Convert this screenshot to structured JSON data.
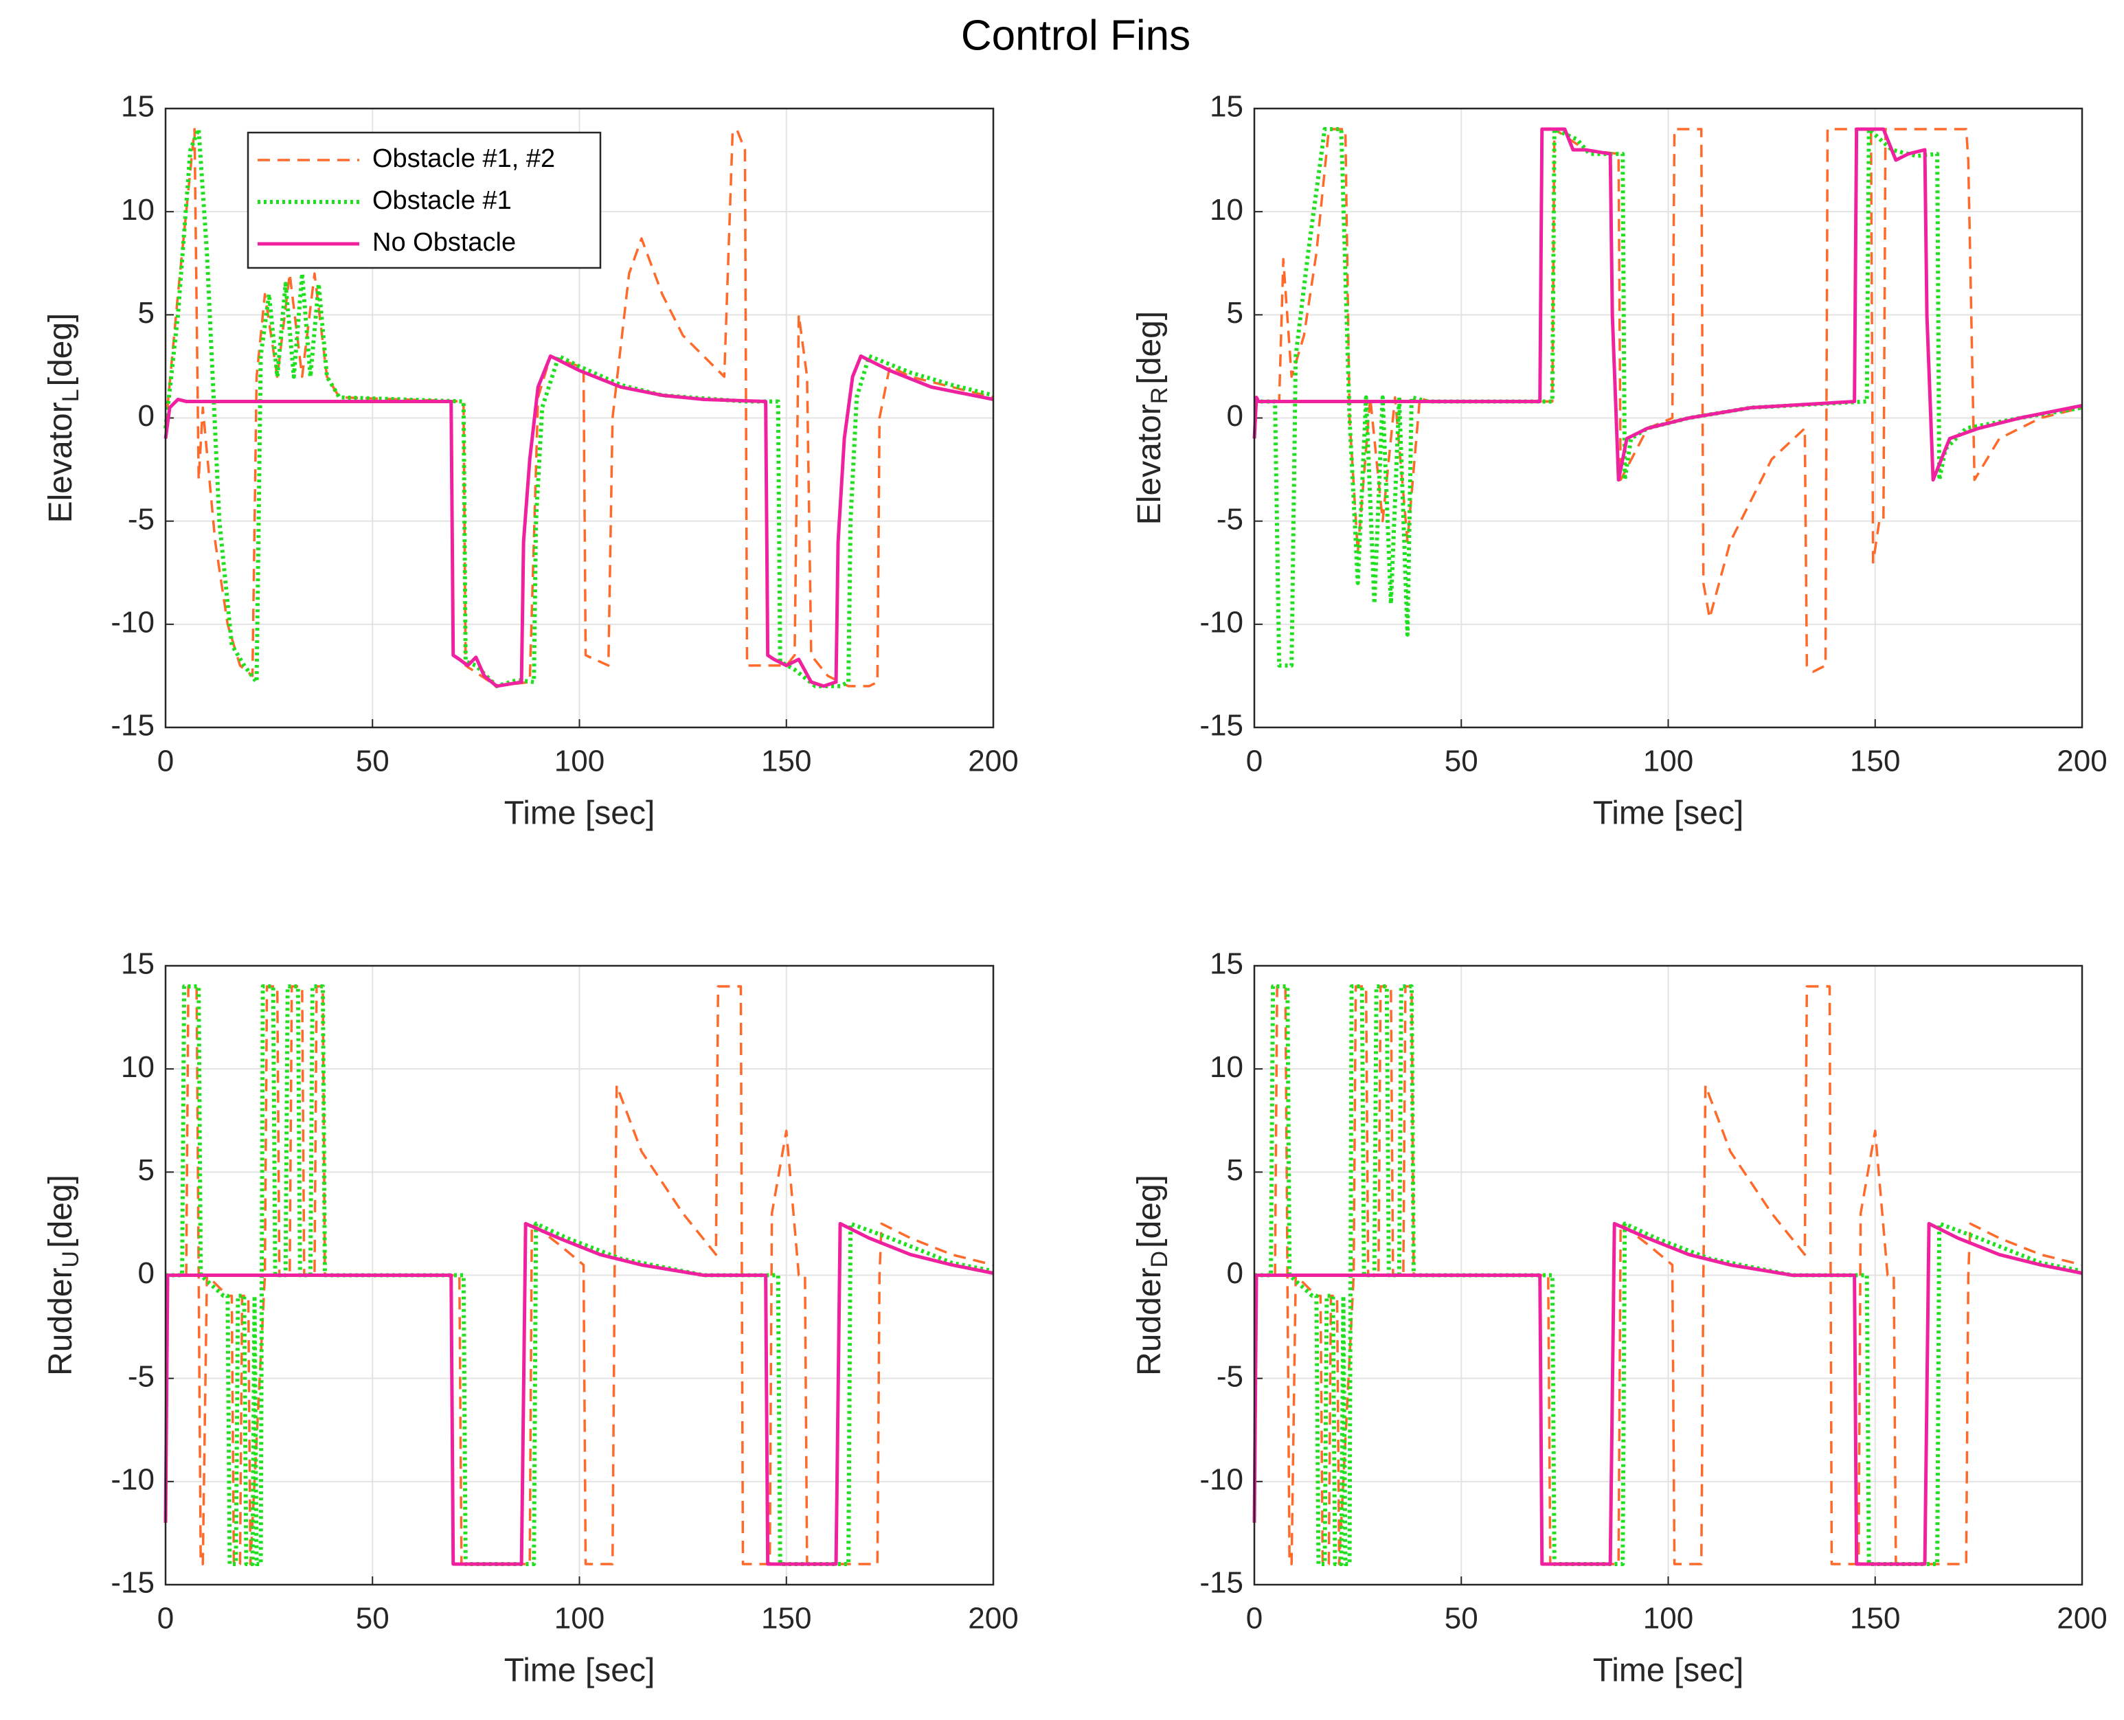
{
  "title": "Control Fins",
  "chart_data": [
    {
      "type": "line",
      "ylabel": "Elevator",
      "ylabel_sub": "L",
      "ylabel_unit": "[deg]",
      "xlabel": "Time [sec]",
      "xlim": [
        0,
        200
      ],
      "ylim": [
        -15,
        15
      ],
      "xticks": [
        0,
        50,
        100,
        150,
        200
      ],
      "yticks": [
        -15,
        -10,
        -5,
        0,
        5,
        10,
        15
      ],
      "grid": true,
      "legend": "upper left",
      "series": [
        {
          "name": "Obstacle #1, #2",
          "color": "#ff6a2b",
          "style": "dashed",
          "x": [
            0,
            3,
            7,
            8,
            9,
            12,
            15,
            18,
            21,
            22,
            24,
            27,
            30,
            33,
            36,
            39,
            42,
            72,
            72.5,
            80,
            88,
            90,
            93,
            100,
            101,
            101.5,
            107,
            108,
            112,
            115,
            120,
            125,
            130,
            135,
            137,
            138,
            140,
            140.5,
            150,
            152,
            153,
            155,
            156,
            160,
            165,
            170,
            172,
            172.5,
            175,
            180,
            190,
            200
          ],
          "values": [
            -0.5,
            6,
            14,
            -3,
            0.5,
            -6,
            -10,
            -12,
            -12.5,
            2,
            6,
            2,
            7,
            2,
            7,
            2,
            1,
            0.8,
            -12,
            -13,
            -12.8,
            1,
            3,
            2.5,
            2.3,
            -11.5,
            -12,
            0,
            7,
            8.7,
            6,
            4,
            3,
            2,
            13.8,
            14,
            13,
            -12,
            -12,
            -11.5,
            5,
            2,
            -11.5,
            -12.5,
            -13,
            -13,
            -12.8,
            0,
            2.5,
            2,
            1.5,
            1
          ]
        },
        {
          "name": "Obstacle #1",
          "color": "#1fe01f",
          "style": "dotted",
          "x": [
            0,
            3,
            6,
            8,
            10,
            13,
            16,
            19,
            22,
            23,
            25,
            27,
            29,
            31,
            33,
            35,
            37,
            39,
            42,
            72,
            72.5,
            75,
            80,
            85,
            89,
            89.5,
            91,
            95,
            100,
            110,
            120,
            140,
            148,
            148.5,
            152,
            157,
            163,
            165,
            165.5,
            167,
            170,
            180,
            190,
            200
          ],
          "values": [
            -0.5,
            5,
            13,
            14,
            8,
            -5,
            -11,
            -12,
            -12.8,
            3,
            6,
            2,
            6.5,
            2,
            7,
            2,
            6.5,
            2,
            1,
            0.8,
            -11.8,
            -12,
            -13,
            -12.7,
            -12.8,
            -5,
            0.5,
            3,
            2.5,
            1.6,
            1.1,
            0.8,
            0.8,
            -11.8,
            -12.2,
            -13,
            -13,
            -12.8,
            -5,
            1,
            3,
            2.2,
            1.6,
            1.1
          ]
        },
        {
          "name": "No Obstacle",
          "color": "#f0219f",
          "style": "solid",
          "x": [
            0,
            1,
            3,
            5,
            69,
            69.5,
            71,
            73,
            75,
            77,
            80,
            83,
            86,
            86.5,
            88,
            90,
            93,
            100,
            110,
            120,
            130,
            145,
            145.5,
            147,
            150,
            153,
            156,
            159,
            162,
            162.5,
            164,
            166,
            168,
            175,
            185,
            200
          ],
          "values": [
            -1,
            0.5,
            0.9,
            0.8,
            0.8,
            -11.5,
            -11.7,
            -12,
            -11.6,
            -12.5,
            -13,
            -12.9,
            -12.8,
            -6,
            -2,
            1.5,
            3,
            2.3,
            1.5,
            1.1,
            0.9,
            0.8,
            -11.5,
            -11.7,
            -12,
            -11.7,
            -12.8,
            -13,
            -12.8,
            -6,
            -1,
            2,
            3,
            2.3,
            1.5,
            0.9
          ]
        }
      ]
    },
    {
      "type": "line",
      "ylabel": "Elevator",
      "ylabel_sub": "R",
      "ylabel_unit": "[deg]",
      "xlabel": "Time [sec]",
      "xlim": [
        0,
        200
      ],
      "ylim": [
        -15,
        15
      ],
      "xticks": [
        0,
        50,
        100,
        150,
        200
      ],
      "yticks": [
        -15,
        -10,
        -5,
        0,
        5,
        10,
        15
      ],
      "grid": true,
      "series": [
        {
          "name": "Obstacle #1, #2",
          "color": "#ff6a2b",
          "style": "dashed",
          "x": [
            0,
            6,
            7,
            9,
            12,
            15,
            18,
            20,
            22,
            23,
            25,
            28,
            31,
            34,
            37,
            40,
            42,
            72,
            72.5,
            80,
            88,
            88.5,
            95,
            101,
            101.5,
            108,
            108.5,
            110,
            115,
            120,
            125,
            133,
            133.5,
            135,
            138,
            138.5,
            149,
            149.5,
            151,
            152,
            152.5,
            172,
            172.5,
            174,
            180,
            190,
            200
          ],
          "values": [
            0.8,
            0.8,
            7.7,
            2,
            4,
            8,
            14,
            14,
            14,
            0,
            -6.5,
            1,
            -5,
            1,
            -6,
            1,
            0.8,
            0.8,
            14,
            13,
            12.8,
            -3,
            -0.5,
            0,
            14,
            14,
            -8,
            -9.7,
            -6,
            -4,
            -2,
            -0.5,
            -12,
            -12.3,
            -12,
            14,
            14,
            -7,
            -5,
            -5,
            14,
            14,
            12.5,
            -3,
            -1,
            0,
            0.5
          ]
        },
        {
          "name": "Obstacle #1",
          "color": "#1fe01f",
          "style": "dotted",
          "x": [
            0,
            5,
            6,
            9,
            10,
            13,
            17,
            21,
            23,
            25,
            27,
            29,
            31,
            33,
            35,
            37,
            38,
            42,
            72,
            72.5,
            78,
            81,
            89,
            89.5,
            91,
            95,
            105,
            120,
            148,
            148.5,
            154,
            160,
            165,
            165.5,
            167,
            172,
            185,
            200
          ],
          "values": [
            0.8,
            0.8,
            -12,
            -12,
            3,
            8,
            14,
            14,
            0,
            -8,
            1,
            -9,
            1,
            -9,
            1,
            -10.5,
            1,
            0.8,
            0.8,
            14,
            13.5,
            12.8,
            12.8,
            -3,
            -1,
            -0.5,
            0,
            0.5,
            0.8,
            14,
            13,
            12.7,
            12.8,
            -3,
            -1.5,
            -0.5,
            0,
            0.5
          ]
        },
        {
          "name": "No Obstacle",
          "color": "#f0219f",
          "style": "solid",
          "x": [
            0,
            0.5,
            1,
            69,
            69.5,
            75,
            77,
            80,
            86,
            86.5,
            88,
            90,
            95,
            105,
            120,
            145,
            145.5,
            152,
            155,
            158,
            162,
            162.5,
            164,
            168,
            175,
            185,
            200
          ],
          "values": [
            -1,
            1,
            0.8,
            0.8,
            14,
            14,
            13,
            13,
            12.8,
            5,
            -3,
            -1,
            -0.5,
            0,
            0.5,
            0.8,
            14,
            14,
            12.5,
            12.8,
            13,
            5,
            -3,
            -1,
            -0.5,
            0,
            0.6
          ]
        }
      ]
    },
    {
      "type": "line",
      "ylabel": "Rudder",
      "ylabel_sub": "U",
      "ylabel_unit": "[deg]",
      "xlabel": "Time [sec]",
      "xlim": [
        0,
        200
      ],
      "ylim": [
        -15,
        15
      ],
      "xticks": [
        0,
        50,
        100,
        150,
        200
      ],
      "yticks": [
        -15,
        -10,
        -5,
        0,
        5,
        10,
        15
      ],
      "grid": true,
      "series": [
        {
          "name": "Obstacle #1, #2",
          "color": "#ff6a2b",
          "style": "dashed",
          "x": [
            0,
            5,
            5.5,
            7.5,
            8,
            8.5,
            9,
            10,
            15,
            16,
            16.5,
            18,
            18.5,
            20,
            20.5,
            24,
            24.5,
            27,
            27.5,
            30,
            30.5,
            33,
            33.5,
            36,
            36.5,
            38,
            38.5,
            71,
            71.5,
            88,
            88.5,
            95,
            101,
            101.5,
            108,
            108.5,
            109,
            115,
            125,
            133,
            133.5,
            139,
            139.5,
            146,
            146.5,
            150,
            153,
            154.5,
            155,
            172,
            172.5,
            173,
            180,
            190,
            200
          ],
          "values": [
            0,
            0,
            14,
            14,
            0,
            -14,
            -14,
            0,
            -1,
            -1,
            -14,
            -14,
            -1,
            -1,
            -14,
            0,
            14,
            14,
            0,
            0,
            14,
            14,
            0,
            0,
            14,
            14,
            0,
            0,
            -14,
            -14,
            2.5,
            1.5,
            0.5,
            -14,
            -14,
            0,
            9.2,
            6,
            3,
            1,
            14,
            14,
            -14,
            -14,
            3,
            7,
            0,
            0,
            -14,
            -14,
            0,
            2.5,
            1.8,
            1,
            0.5
          ]
        },
        {
          "name": "Obstacle #1",
          "color": "#1fe01f",
          "style": "dotted",
          "x": [
            0,
            4,
            4.5,
            8,
            8.5,
            14,
            15,
            15.5,
            17,
            17.5,
            19,
            19.5,
            21,
            21.5,
            22,
            23,
            23.5,
            26,
            26.5,
            29,
            29.5,
            32,
            32.5,
            35,
            35.5,
            38,
            38.5,
            72,
            72.5,
            89,
            89.5,
            97,
            110,
            130,
            148,
            148.5,
            165,
            165.5,
            175,
            190,
            200
          ],
          "values": [
            0,
            0,
            14,
            14,
            0,
            -1,
            -1,
            -14,
            -14,
            -1,
            -1,
            -14,
            -14,
            -1,
            -14,
            -14,
            14,
            14,
            0,
            0,
            14,
            14,
            0,
            0,
            14,
            14,
            0,
            0,
            -14,
            -14,
            2.5,
            1.8,
            0.8,
            0,
            0,
            -14,
            -14,
            2.5,
            1.8,
            0.6,
            0.2
          ]
        },
        {
          "name": "No Obstacle",
          "color": "#f0219f",
          "style": "solid",
          "x": [
            0,
            0.5,
            69,
            69.5,
            86,
            87,
            95,
            105,
            115,
            130,
            145,
            145.5,
            162,
            163,
            170,
            180,
            190,
            200
          ],
          "values": [
            -12,
            0,
            0,
            -14,
            -14,
            2.5,
            1.8,
            1,
            0.5,
            0,
            0,
            -14,
            -14,
            2.5,
            1.8,
            1,
            0.5,
            0.1
          ]
        }
      ]
    },
    {
      "type": "line",
      "ylabel": "Rudder",
      "ylabel_sub": "D",
      "ylabel_unit": "[deg]",
      "xlabel": "Time [sec]",
      "xlim": [
        0,
        200
      ],
      "ylim": [
        -15,
        15
      ],
      "xticks": [
        0,
        50,
        100,
        150,
        200
      ],
      "yticks": [
        -15,
        -10,
        -5,
        0,
        5,
        10,
        15
      ],
      "grid": true,
      "series": [
        {
          "name": "Obstacle #1, #2",
          "color": "#ff6a2b",
          "style": "dashed",
          "x": [
            0,
            5,
            5.5,
            7.5,
            8,
            8.5,
            9,
            10,
            15,
            16,
            16.5,
            18,
            18.5,
            20,
            20.5,
            24,
            24.5,
            27,
            27.5,
            30,
            30.5,
            33,
            33.5,
            36,
            36.5,
            38,
            38.5,
            71,
            71.5,
            88,
            88.5,
            95,
            101,
            101.5,
            108,
            108.5,
            109,
            115,
            125,
            133,
            133.5,
            139,
            139.5,
            146,
            146.5,
            150,
            153,
            154.5,
            155,
            172,
            172.5,
            173,
            180,
            190,
            200
          ],
          "values": [
            0,
            0,
            14,
            14,
            0,
            -14,
            -14,
            0,
            -1,
            -1,
            -14,
            -14,
            -1,
            -1,
            -14,
            0,
            14,
            14,
            0,
            0,
            14,
            14,
            0,
            0,
            14,
            14,
            0,
            0,
            -14,
            -14,
            2.5,
            1.5,
            0.5,
            -14,
            -14,
            0,
            9.2,
            6,
            3,
            1,
            14,
            14,
            -14,
            -14,
            3,
            7,
            0,
            0,
            -14,
            -14,
            0,
            2.5,
            1.8,
            1,
            0.5
          ]
        },
        {
          "name": "Obstacle #1",
          "color": "#1fe01f",
          "style": "dotted",
          "x": [
            0,
            4,
            4.5,
            8,
            8.5,
            14,
            15,
            15.5,
            17,
            17.5,
            19,
            19.5,
            21,
            21.5,
            22,
            23,
            23.5,
            26,
            26.5,
            29,
            29.5,
            32,
            32.5,
            35,
            35.5,
            38,
            38.5,
            72,
            72.5,
            89,
            89.5,
            97,
            110,
            130,
            148,
            148.5,
            165,
            165.5,
            175,
            190,
            200
          ],
          "values": [
            0,
            0,
            14,
            14,
            0,
            -1,
            -1,
            -14,
            -14,
            -1,
            -1,
            -14,
            -14,
            -1,
            -14,
            -14,
            14,
            14,
            0,
            0,
            14,
            14,
            0,
            0,
            14,
            14,
            0,
            0,
            -14,
            -14,
            2.5,
            1.8,
            0.8,
            0,
            0,
            -14,
            -14,
            2.5,
            1.8,
            0.6,
            0.2
          ]
        },
        {
          "name": "No Obstacle",
          "color": "#f0219f",
          "style": "solid",
          "x": [
            0,
            0.5,
            69,
            69.5,
            86,
            87,
            95,
            105,
            115,
            130,
            145,
            145.5,
            162,
            163,
            170,
            180,
            190,
            200
          ],
          "values": [
            -12,
            0,
            0,
            -14,
            -14,
            2.5,
            1.8,
            1,
            0.5,
            0,
            0,
            -14,
            -14,
            2.5,
            1.8,
            1,
            0.5,
            0.1
          ]
        }
      ]
    }
  ]
}
